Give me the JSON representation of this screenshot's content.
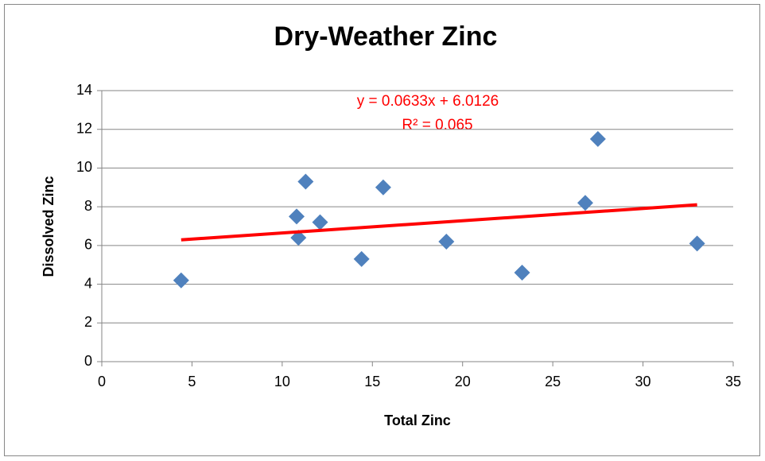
{
  "chart_data": {
    "type": "scatter",
    "title": "Dry-Weather Zinc",
    "x_label": "Total Zinc",
    "y_label": "Dissolved Zinc",
    "series": [
      {
        "name": "Dissolved Zinc",
        "color": "#4f81bd",
        "x": [
          4.4,
          10.8,
          10.9,
          11.3,
          12.1,
          14.4,
          15.6,
          19.1,
          23.3,
          26.8,
          27.5,
          33.0
        ],
        "values": [
          4.2,
          7.5,
          6.4,
          9.3,
          7.2,
          5.3,
          9.0,
          6.2,
          4.6,
          8.2,
          11.5,
          6.1
        ]
      }
    ],
    "trendline": {
      "slope": 0.0633,
      "intercept": 6.0126,
      "color": "#ff0000",
      "equation": "y = 0.0633x + 6.0126",
      "r2": "R² = 0.065"
    },
    "xlim": [
      0,
      35
    ],
    "xticks": [
      0,
      5,
      10,
      15,
      20,
      25,
      30,
      35
    ],
    "ylim": [
      0,
      14
    ],
    "yticks": [
      0,
      2,
      4,
      6,
      8,
      10,
      12,
      14
    ],
    "grid": true
  }
}
